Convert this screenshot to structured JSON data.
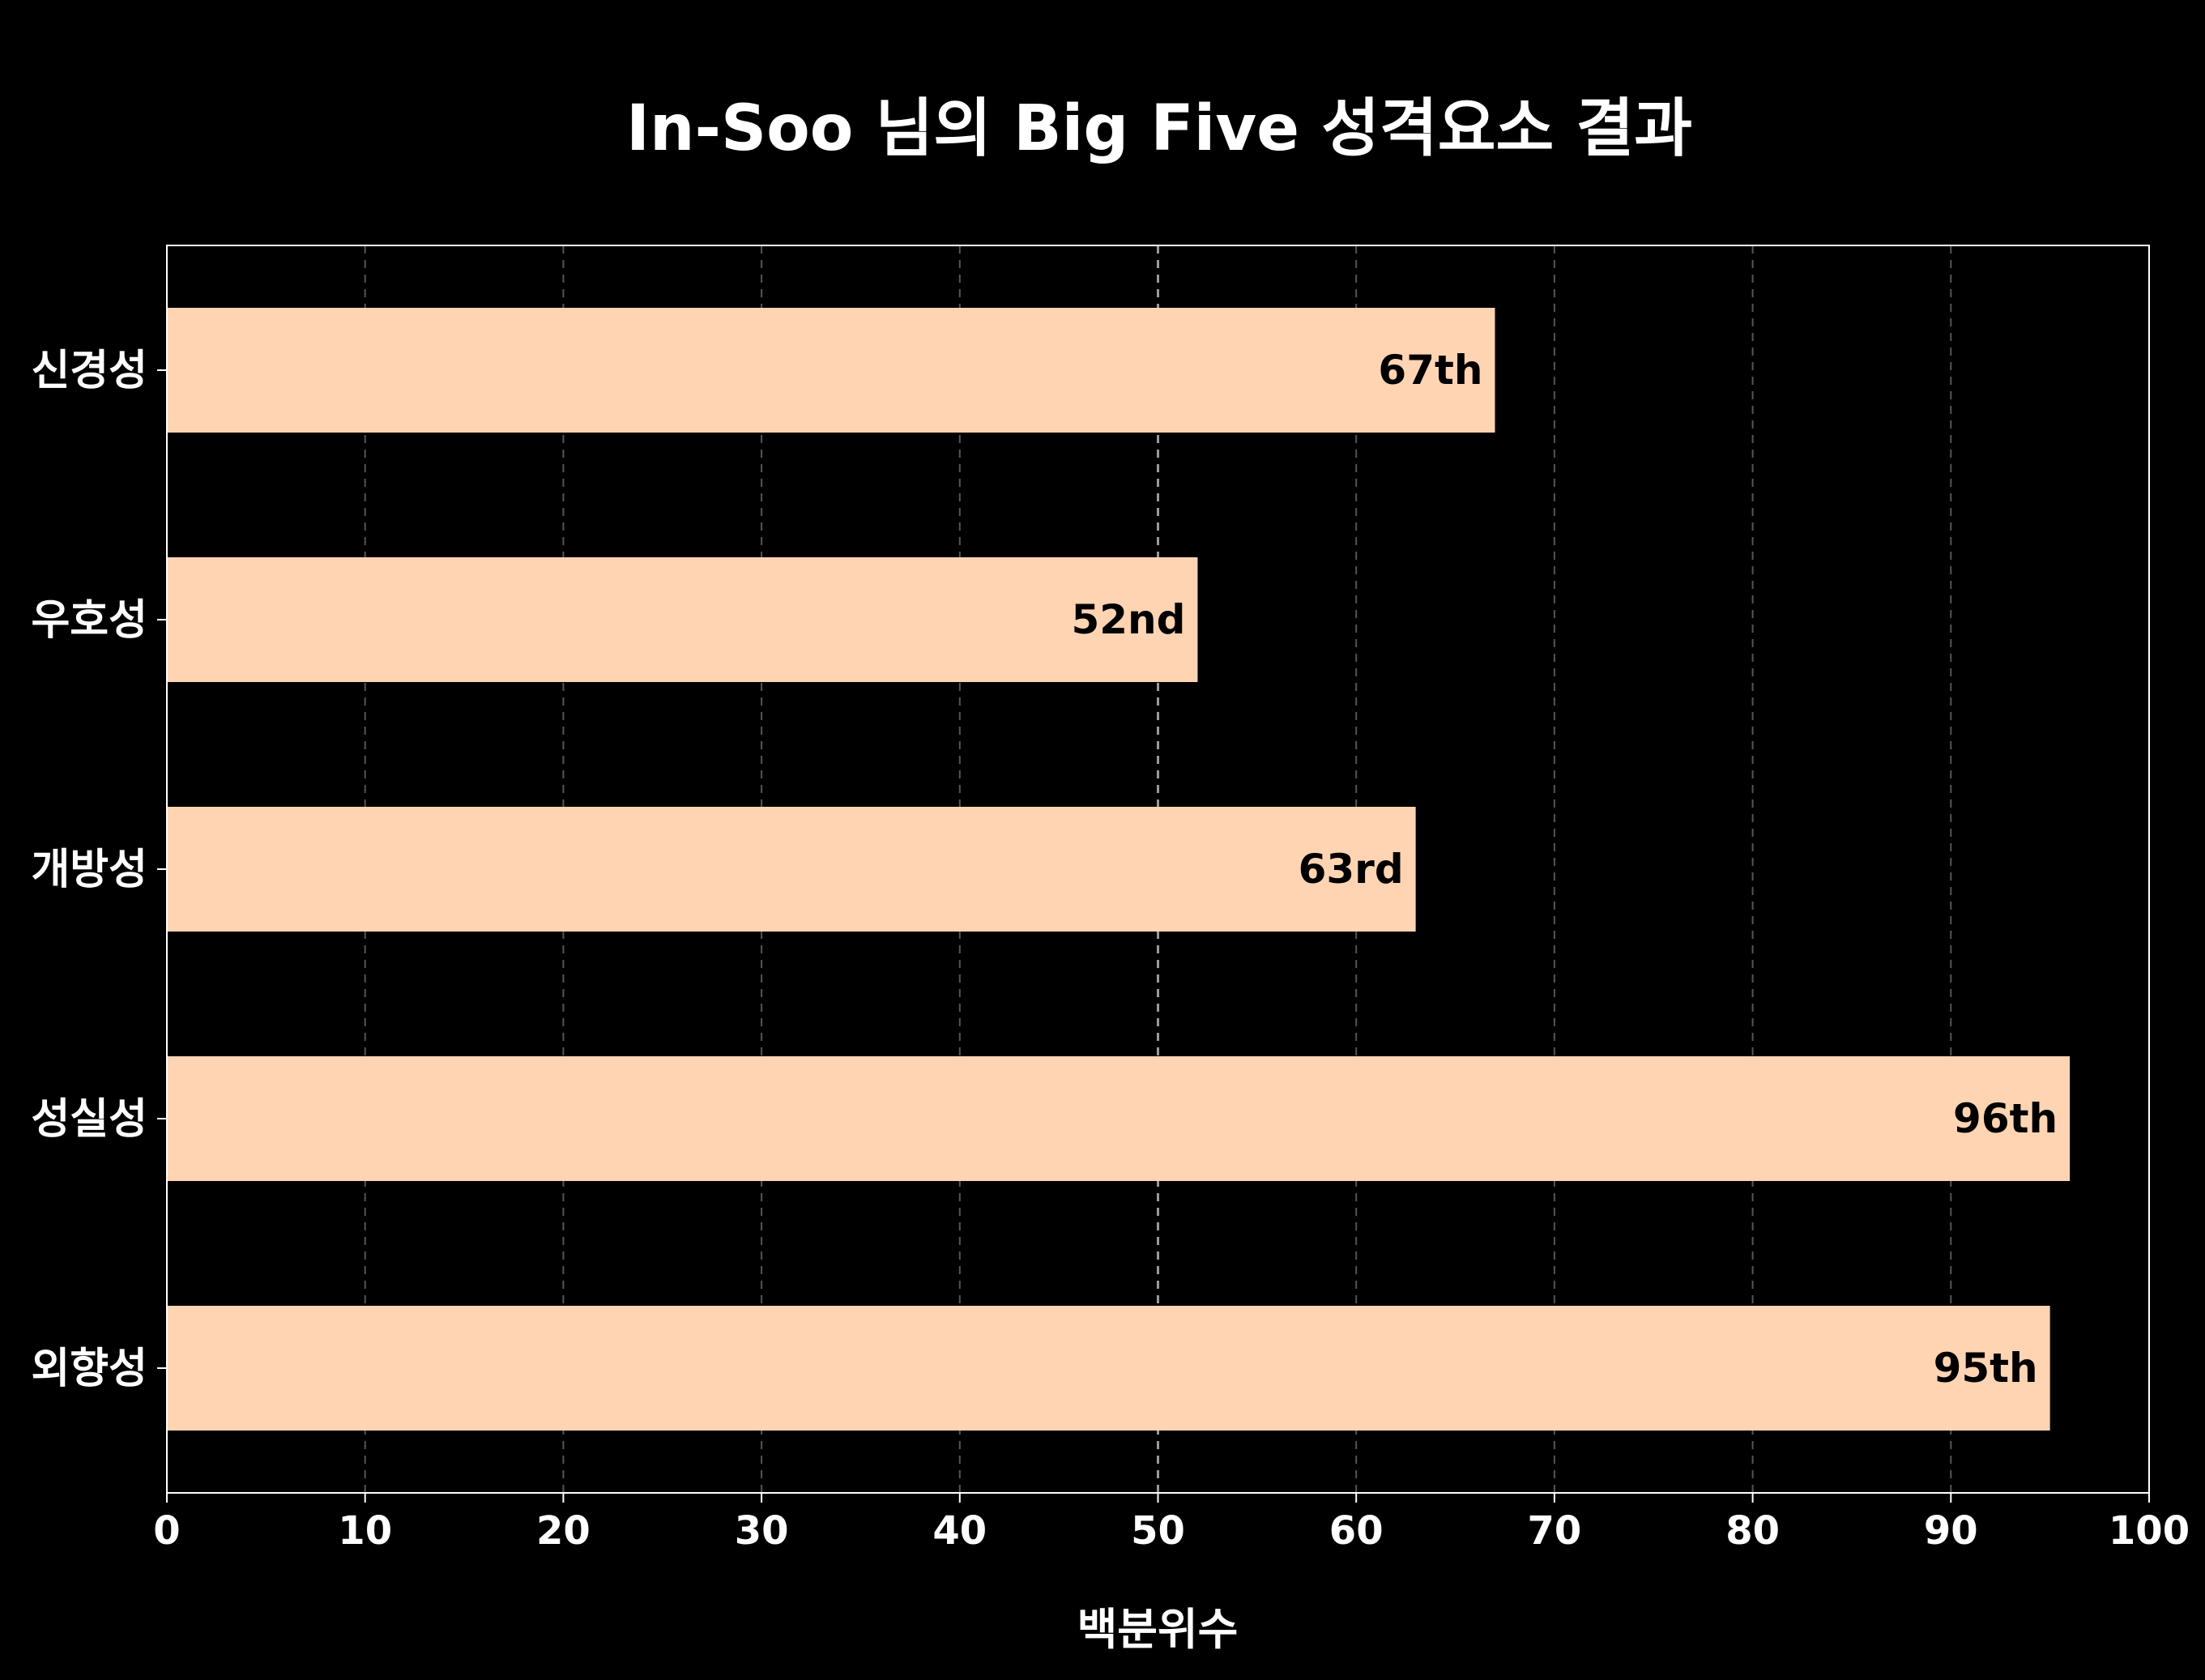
{
  "chart_data": {
    "type": "bar",
    "orientation": "horizontal",
    "title": "In-Soo 님의 Big Five 성격요소 결과",
    "xlabel": "백분위수",
    "ylabel": "",
    "xlim": [
      0,
      100
    ],
    "xticks": [
      "0",
      "10",
      "20",
      "30",
      "40",
      "50",
      "60",
      "70",
      "80",
      "90",
      "100"
    ],
    "categories": [
      "신경성",
      "우호성",
      "개방성",
      "성실성",
      "외향성"
    ],
    "values": [
      67,
      52,
      63,
      96,
      95
    ],
    "data_labels": [
      "67th",
      "52nd",
      "63rd",
      "96th",
      "95th"
    ],
    "grid": "vertical dashed",
    "highlight_line": 50,
    "colors": {
      "background": "#000000",
      "bar": "#ffd4b3",
      "text": "#ffffff",
      "bar_label_text": "#000000",
      "grid": "#555555",
      "axis": "#ffffff"
    }
  }
}
